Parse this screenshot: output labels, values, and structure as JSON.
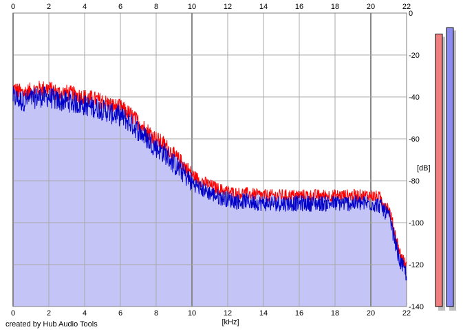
{
  "credit": "created by Hub Audio Tools",
  "colors": {
    "background": "#ffffff",
    "fill": "#c4c4f6",
    "grid": "#a8a8a8",
    "channel1": "#ff0000",
    "channel2": "#0000c8",
    "meter1": "#f08080",
    "meter2": "#8c8cf0"
  },
  "chart_data": {
    "type": "line",
    "title": "",
    "xlabel": "[kHz]",
    "ylabel": "[dB]",
    "xlim": [
      0,
      22
    ],
    "ylim": [
      -140,
      0
    ],
    "x_ticks": [
      0,
      2,
      4,
      6,
      8,
      10,
      12,
      14,
      16,
      18,
      20,
      22
    ],
    "y_ticks": [
      0,
      -20,
      -40,
      -60,
      -80,
      -100,
      -120,
      -140
    ],
    "grid": true,
    "series_envelope": {
      "x": [
        0,
        0.5,
        1,
        1.5,
        2,
        2.5,
        3,
        3.5,
        4,
        4.5,
        5,
        5.5,
        6,
        6.5,
        7,
        7.5,
        8,
        8.5,
        9,
        9.5,
        10,
        10.5,
        11,
        11.5,
        12,
        12.5,
        13,
        14,
        15,
        16,
        17,
        18,
        19,
        20,
        20.5,
        21,
        21.3,
        21.6,
        22
      ],
      "y": [
        -38,
        -40,
        -39,
        -38,
        -38,
        -40,
        -40,
        -41,
        -42,
        -43,
        -44,
        -46,
        -47,
        -50,
        -54,
        -58,
        -62,
        -65,
        -70,
        -74,
        -79,
        -82,
        -84,
        -86,
        -87,
        -88,
        -88,
        -89,
        -89,
        -89,
        -89,
        -89,
        -89,
        -89,
        -90,
        -95,
        -105,
        -116,
        -123
      ]
    },
    "series": [
      {
        "values_note": "",
        "offset_db": 2
      },
      {
        "values_note": "",
        "offset_db": -1
      }
    ],
    "level_meters": [
      {
        "value_db": -10
      },
      {
        "value_db": -7
      }
    ]
  }
}
